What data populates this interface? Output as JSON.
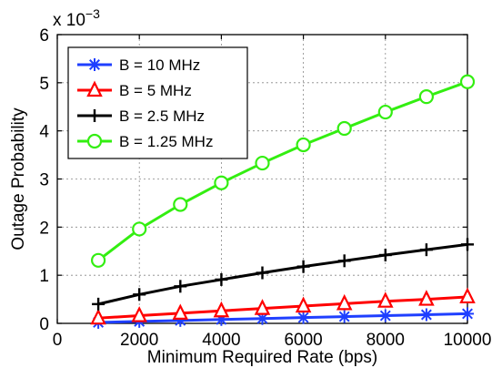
{
  "chart_data": {
    "type": "line",
    "title": "",
    "xlabel": "Minimum Required Rate (bps)",
    "ylabel": "Outage Probability",
    "y_multiplier_label": "x 10",
    "y_multiplier_exponent": "−3",
    "xlim": [
      0,
      10000
    ],
    "ylim": [
      0,
      6
    ],
    "x_ticks": [
      0,
      2000,
      4000,
      6000,
      8000,
      10000
    ],
    "x_tick_labels": [
      "0",
      "2000",
      "4000",
      "6000",
      "8000",
      "10000"
    ],
    "y_ticks": [
      0,
      1,
      2,
      3,
      4,
      5,
      6
    ],
    "y_tick_labels": [
      "0",
      "1",
      "2",
      "3",
      "4",
      "5",
      "6"
    ],
    "grid": true,
    "legend_position": "top-left",
    "x": [
      1000,
      2000,
      3000,
      4000,
      5000,
      6000,
      7000,
      8000,
      9000,
      10000
    ],
    "series": [
      {
        "name": "B = 10 MHz",
        "color": "#1f3fff",
        "marker": "asterisk",
        "values": [
          0.02,
          0.04,
          0.06,
          0.08,
          0.1,
          0.12,
          0.14,
          0.16,
          0.18,
          0.2
        ]
      },
      {
        "name": "B = 5 MHz",
        "color": "#ff0000",
        "marker": "triangle",
        "values": [
          0.11,
          0.16,
          0.21,
          0.26,
          0.31,
          0.36,
          0.41,
          0.46,
          0.5,
          0.55
        ]
      },
      {
        "name": "B = 2.5 MHz",
        "color": "#000000",
        "marker": "plus",
        "values": [
          0.4,
          0.6,
          0.77,
          0.91,
          1.05,
          1.18,
          1.3,
          1.42,
          1.53,
          1.64
        ]
      },
      {
        "name": "B = 1.25 MHz",
        "color": "#33ee11",
        "marker": "circle",
        "values": [
          1.31,
          1.96,
          2.47,
          2.92,
          3.33,
          3.71,
          4.05,
          4.39,
          4.71,
          5.02
        ]
      }
    ]
  }
}
